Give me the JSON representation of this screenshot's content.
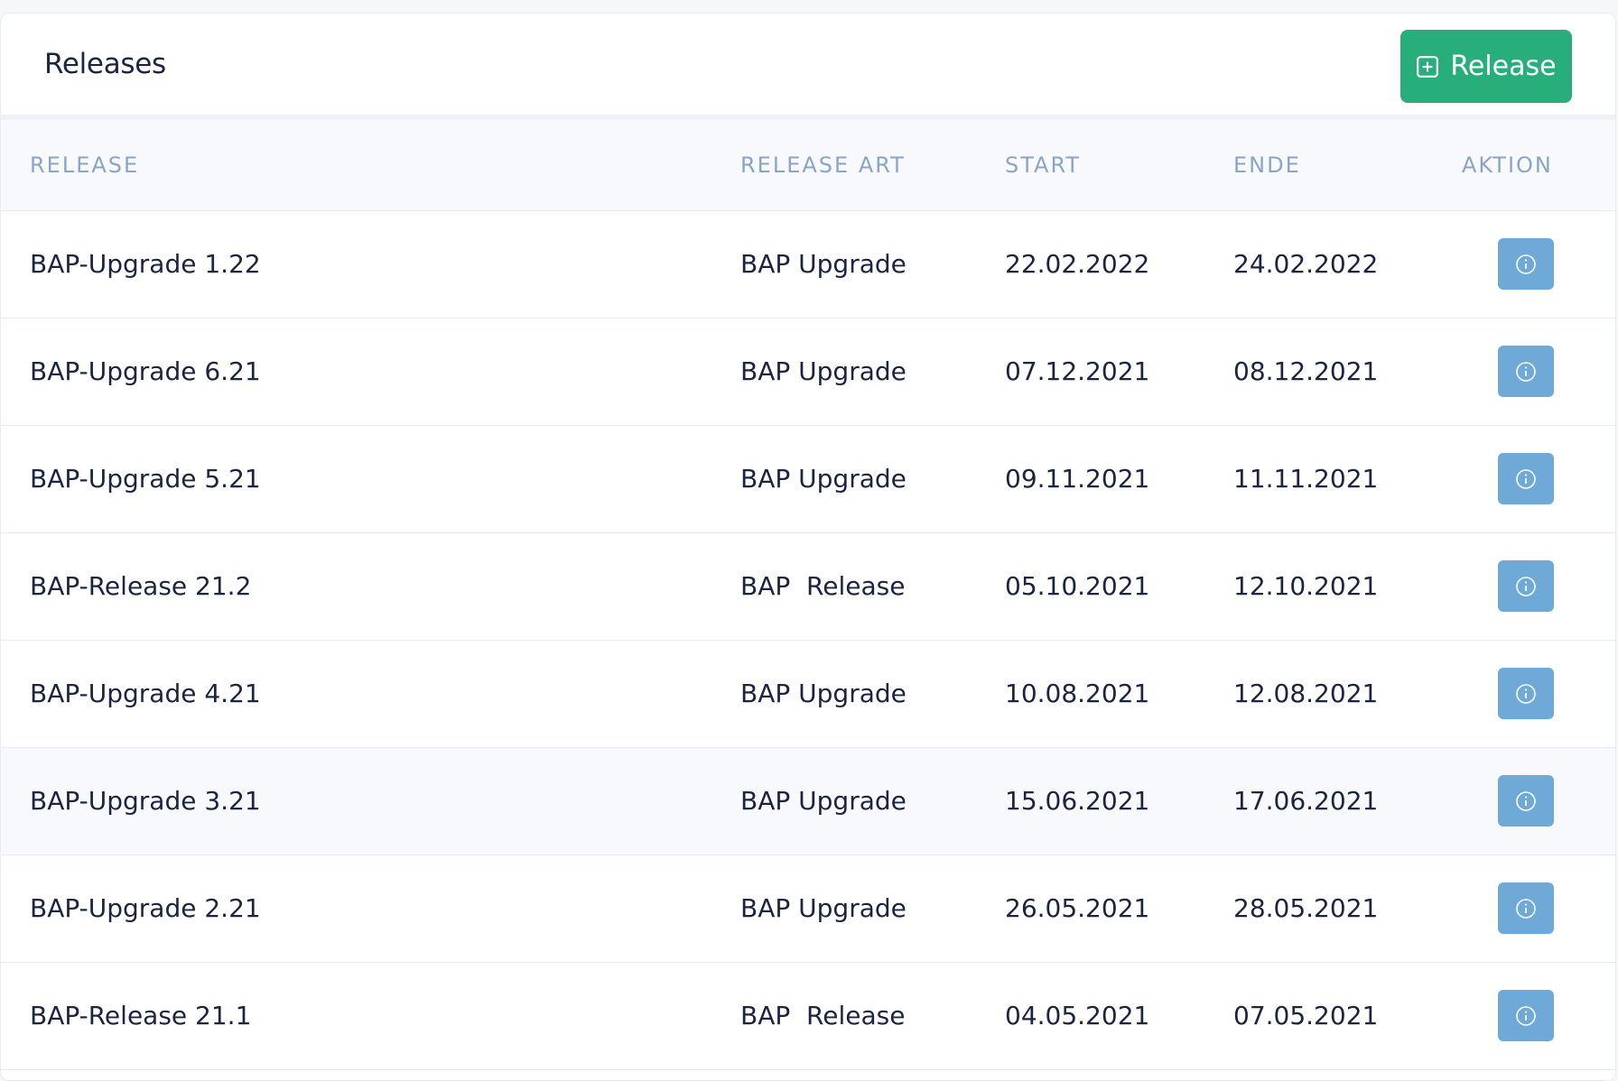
{
  "header": {
    "title": "Releases",
    "add_button_label": "Release"
  },
  "table": {
    "columns": [
      "RELEASE",
      "RELEASE ART",
      "START",
      "ENDE",
      "AKTION"
    ],
    "rows": [
      {
        "name": "BAP-Upgrade 1.22",
        "type": "BAP Upgrade",
        "start": "22.02.2022",
        "end": "24.02.2022"
      },
      {
        "name": "BAP-Upgrade 6.21",
        "type": "BAP Upgrade",
        "start": "07.12.2021",
        "end": "08.12.2021"
      },
      {
        "name": "BAP-Upgrade 5.21",
        "type": "BAP Upgrade",
        "start": "09.11.2021",
        "end": "11.11.2021"
      },
      {
        "name": "BAP-Release 21.2",
        "type": "BAP  Release",
        "start": "05.10.2021",
        "end": "12.10.2021"
      },
      {
        "name": "BAP-Upgrade 4.21",
        "type": "BAP Upgrade",
        "start": "10.08.2021",
        "end": "12.08.2021"
      },
      {
        "name": "BAP-Upgrade 3.21",
        "type": "BAP Upgrade",
        "start": "15.06.2021",
        "end": "17.06.2021"
      },
      {
        "name": "BAP-Upgrade 2.21",
        "type": "BAP Upgrade",
        "start": "26.05.2021",
        "end": "28.05.2021"
      },
      {
        "name": "BAP-Release 21.1",
        "type": "BAP  Release",
        "start": "04.05.2021",
        "end": "07.05.2021"
      }
    ]
  },
  "colors": {
    "primary_green": "#28ae7b",
    "info_blue": "#6fa9d8",
    "header_text": "#8aa5c5"
  },
  "icons": {
    "add": "plus-square-icon",
    "info": "info-circle-icon"
  }
}
